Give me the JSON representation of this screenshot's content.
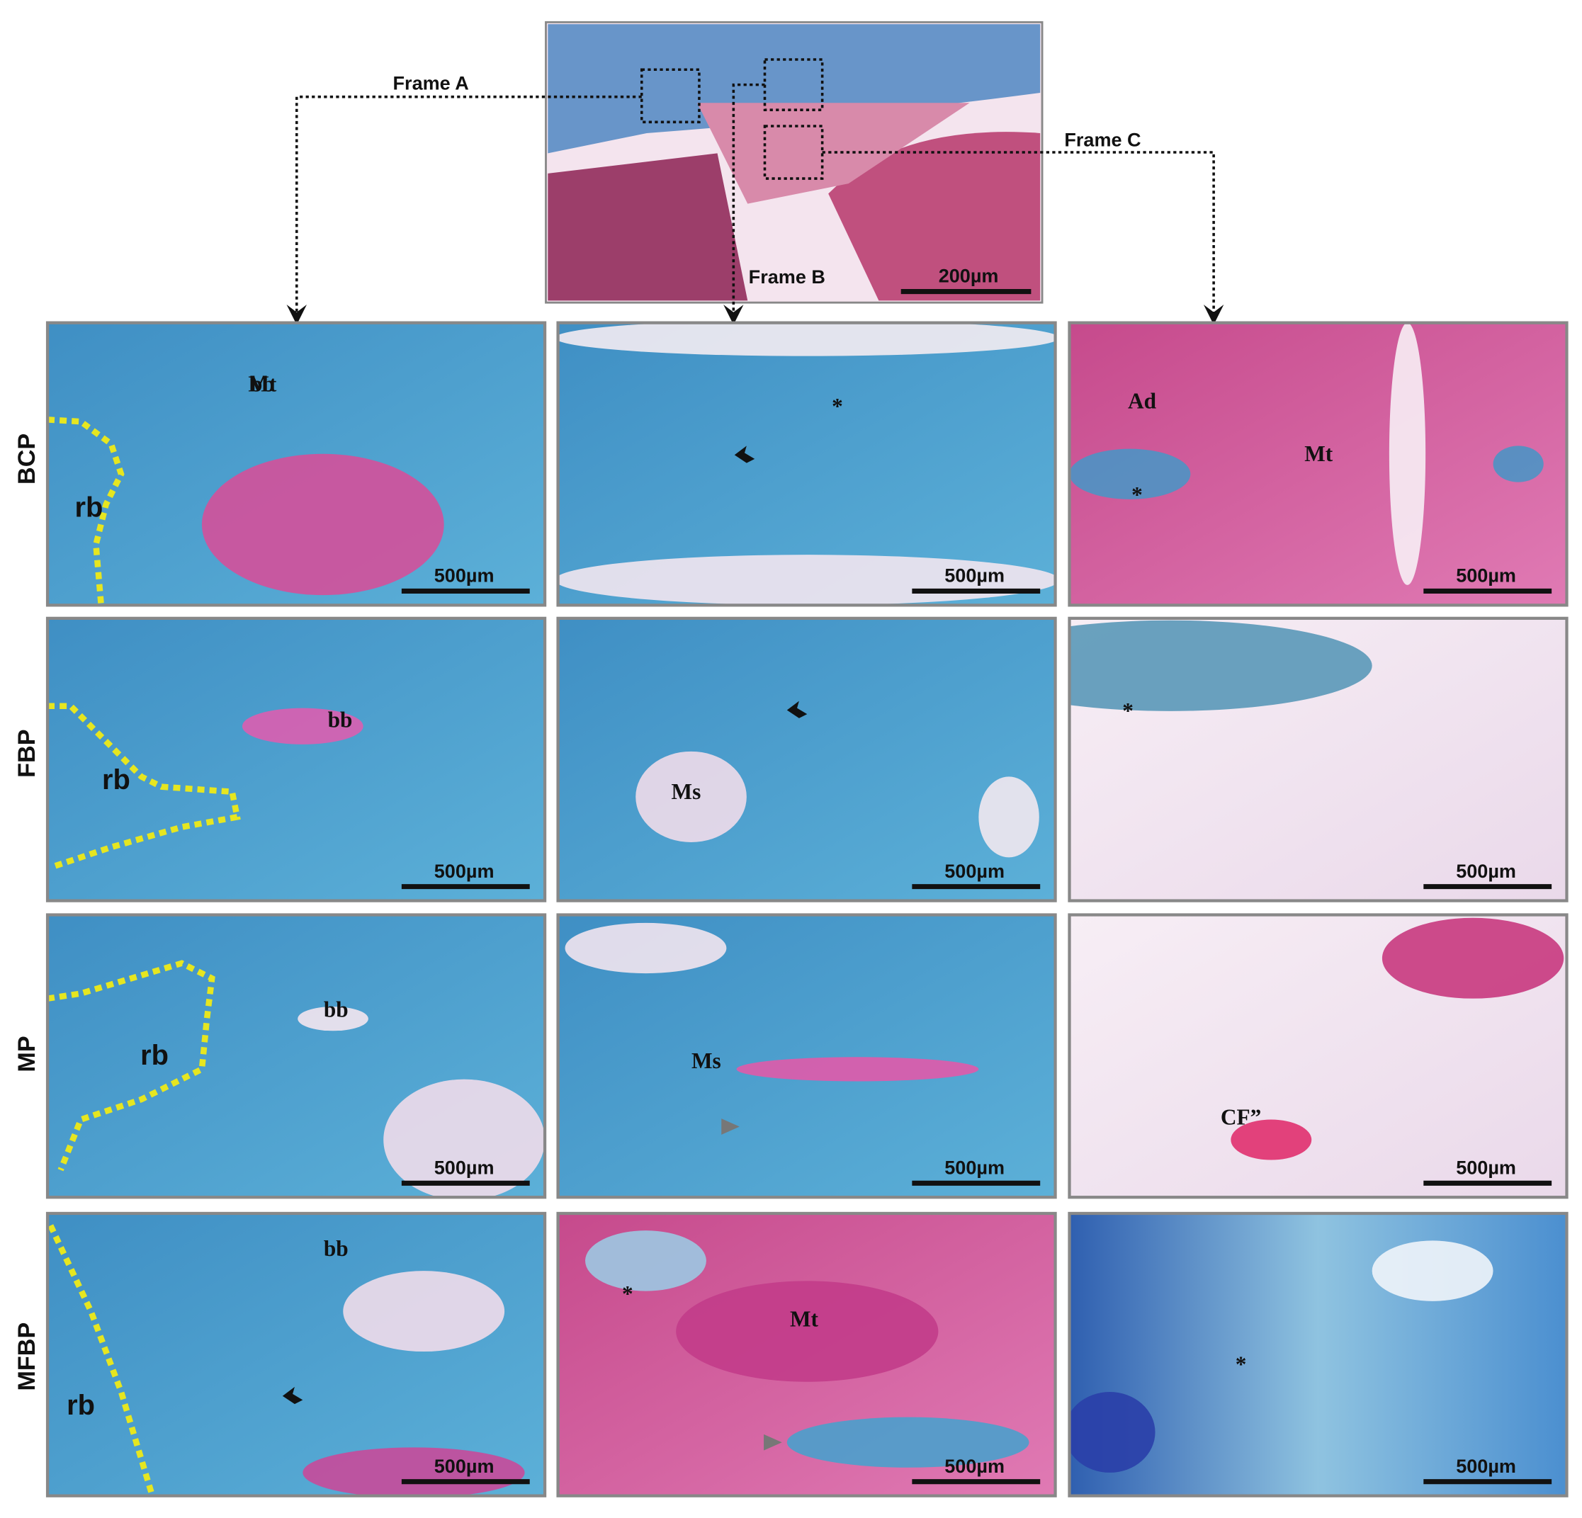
{
  "overview": {
    "frames": [
      "Frame A",
      "Frame B",
      "Frame C"
    ],
    "scale_bar": "200µm"
  },
  "rows": [
    {
      "label": "BCP",
      "panels": [
        {
          "labels": [
            "bb",
            "rb",
            "Mt"
          ],
          "scale_bar": "500µm"
        },
        {
          "labels": [
            "*"
          ],
          "scale_bar": "500µm"
        },
        {
          "labels": [
            "Ad",
            "Mt",
            "*"
          ],
          "scale_bar": "500µm"
        }
      ]
    },
    {
      "label": "FBP",
      "panels": [
        {
          "labels": [
            "bb",
            "rb"
          ],
          "scale_bar": "500µm"
        },
        {
          "labels": [
            "Ms"
          ],
          "scale_bar": "500µm"
        },
        {
          "labels": [
            "*"
          ],
          "scale_bar": "500µm"
        }
      ]
    },
    {
      "label": "MP",
      "panels": [
        {
          "labels": [
            "bb",
            "rb"
          ],
          "scale_bar": "500µm"
        },
        {
          "labels": [
            "Ms"
          ],
          "scale_bar": "500µm"
        },
        {
          "labels": [
            "CF”"
          ],
          "scale_bar": "500µm"
        }
      ]
    },
    {
      "label": "MFBP",
      "panels": [
        {
          "labels": [
            "bb",
            "rb"
          ],
          "scale_bar": "500µm"
        },
        {
          "labels": [
            "*",
            "Mt"
          ],
          "scale_bar": "500µm"
        },
        {
          "labels": [
            "*"
          ],
          "scale_bar": "500µm"
        }
      ]
    }
  ]
}
